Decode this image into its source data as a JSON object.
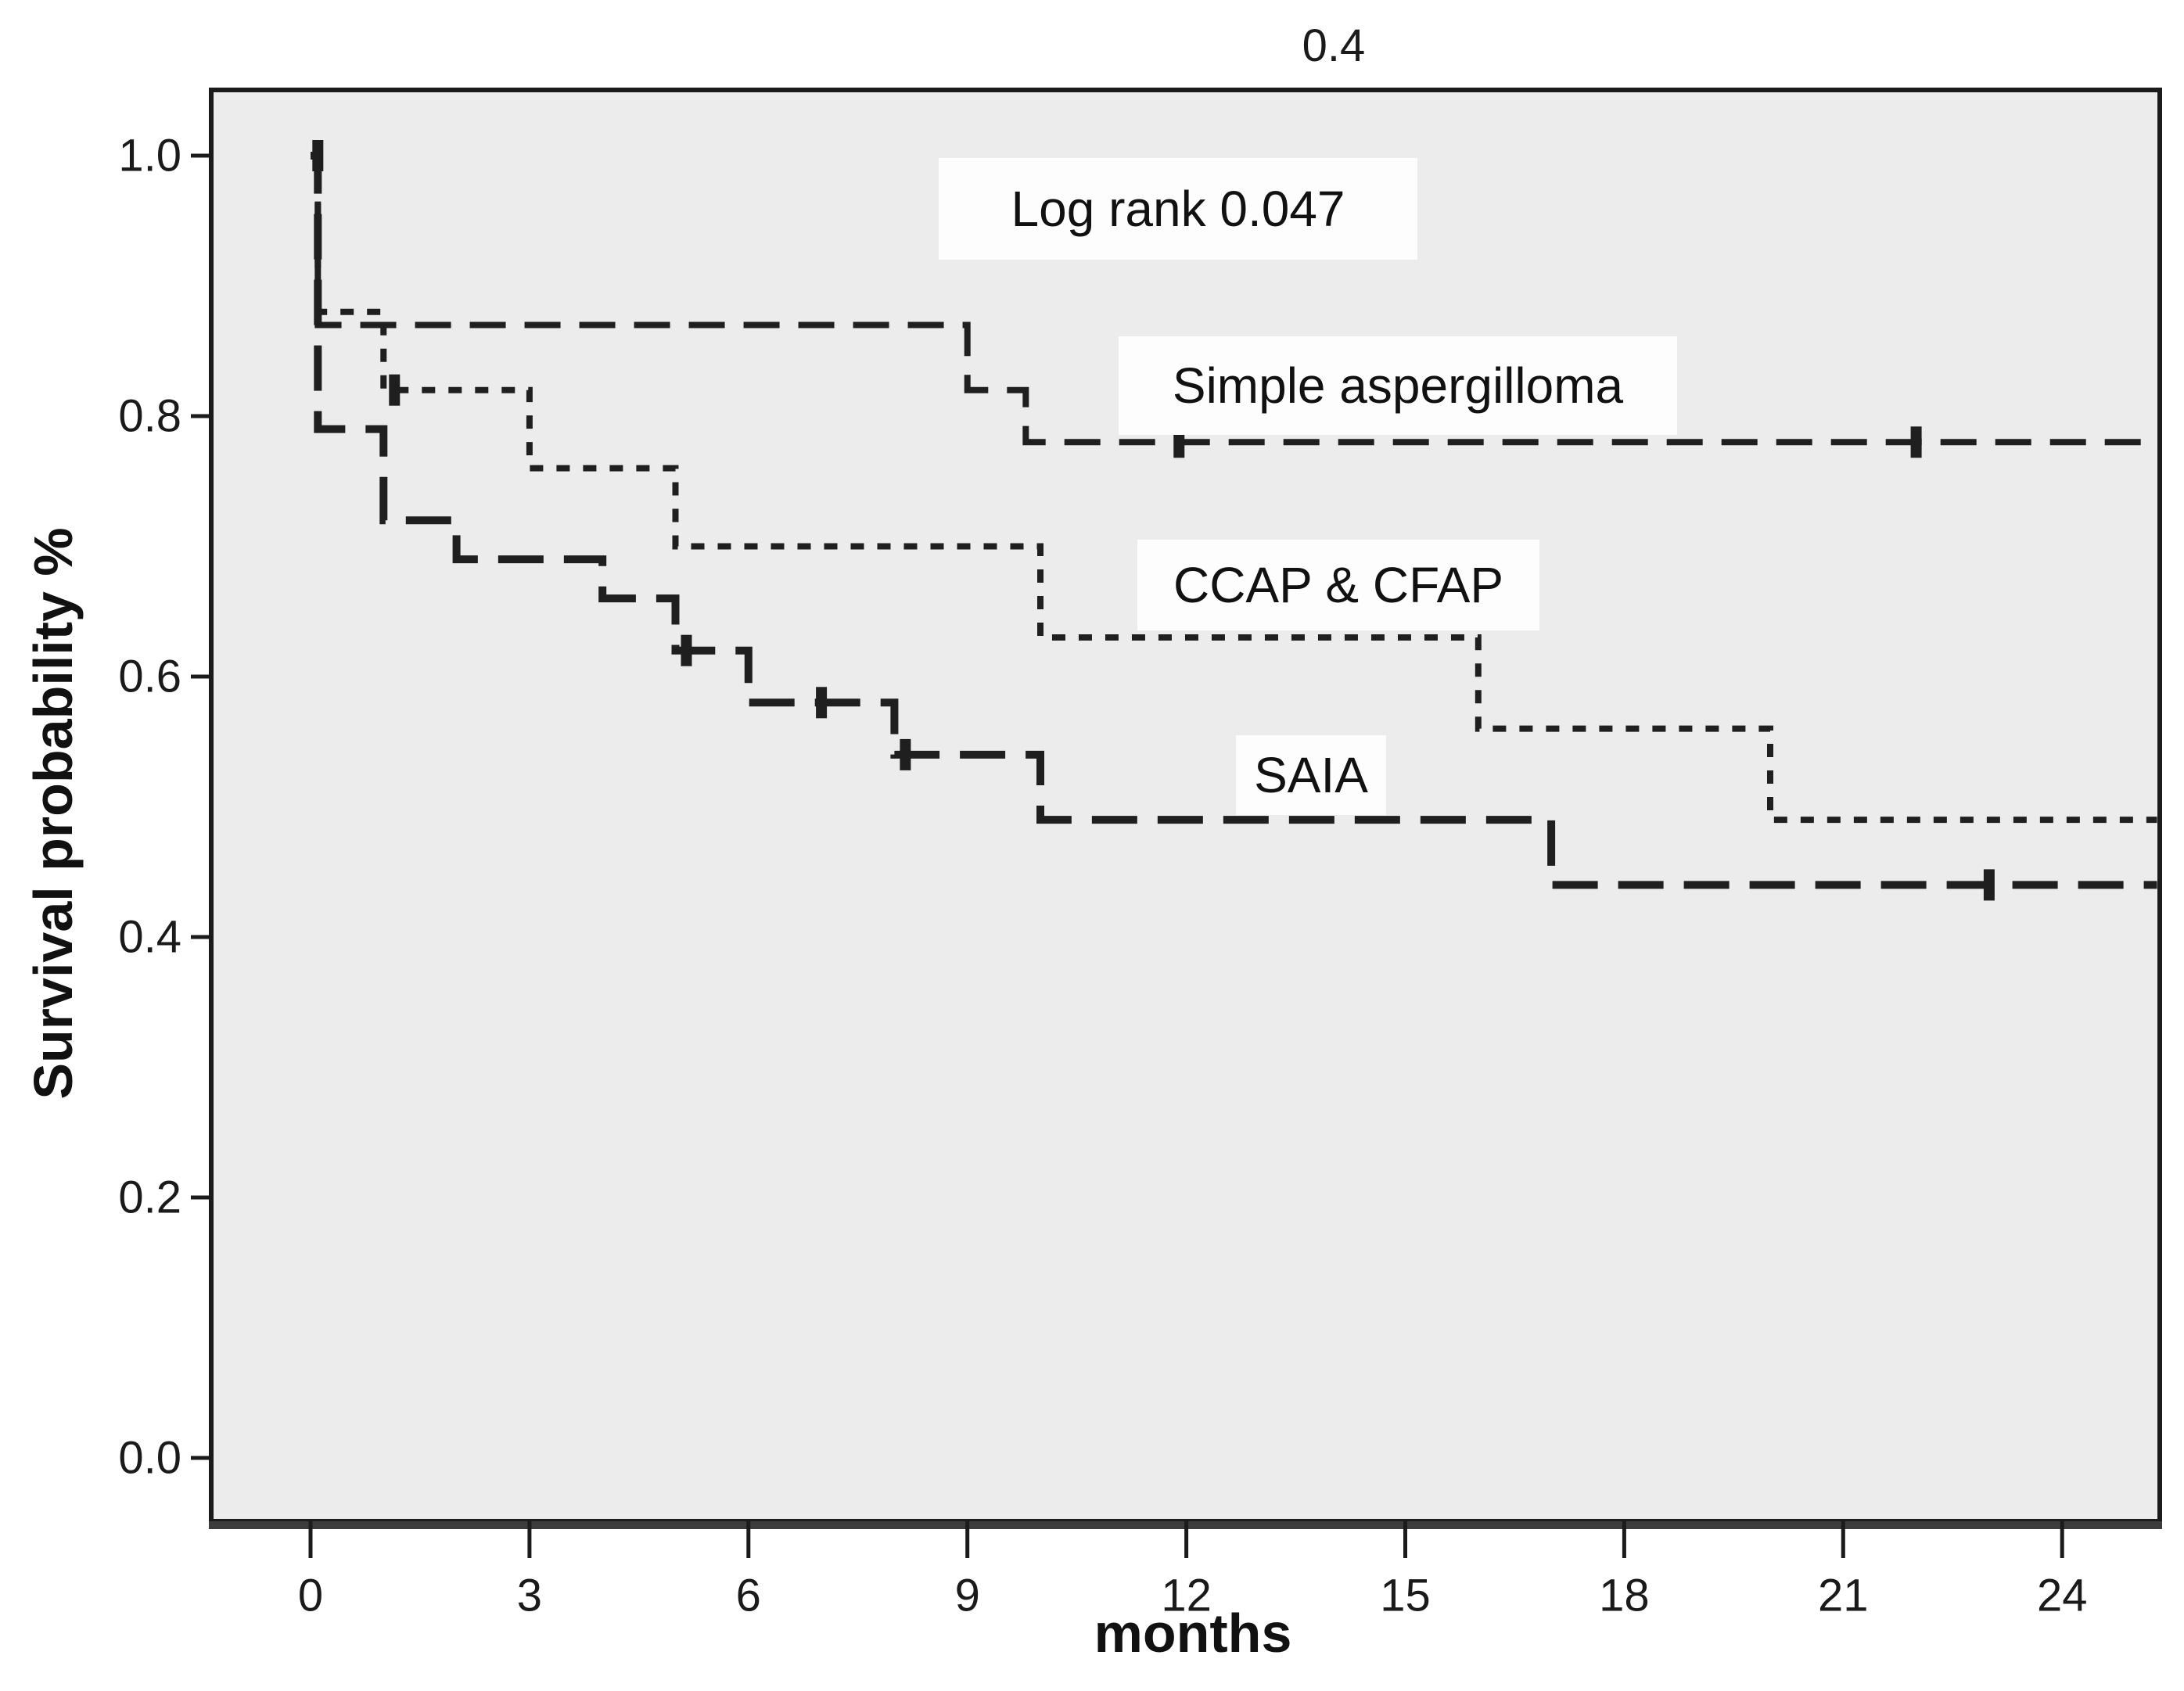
{
  "chart_data": {
    "type": "line",
    "subtype": "kaplan-meier-step",
    "title": "0.4",
    "annotation": "Log rank 0.047",
    "xlabel": "months",
    "ylabel": "Survival probability %",
    "grid": false,
    "legend_position": "inline-labels",
    "x_ticks": [
      {
        "label": "0",
        "value": 0
      },
      {
        "label": "3",
        "value": 3
      },
      {
        "label": "6",
        "value": 6
      },
      {
        "label": "9",
        "value": 9
      },
      {
        "label": "12",
        "value": 12
      },
      {
        "label": "15",
        "value": 15
      },
      {
        "label": "18",
        "value": 18
      },
      {
        "label": "21",
        "value": 21
      },
      {
        "label": "24",
        "value": 24
      }
    ],
    "y_ticks": [
      {
        "label": "1.0",
        "value": 1.0
      },
      {
        "label": "0.8",
        "value": 0.8
      },
      {
        "label": "0.6",
        "value": 0.6
      },
      {
        "label": "0.4",
        "value": 0.4
      },
      {
        "label": "0.2",
        "value": 0.2
      },
      {
        "label": "0.0",
        "value": 0.0
      }
    ],
    "xlim": [
      0,
      25.3
    ],
    "ylim": [
      0.0,
      1.0
    ],
    "series": [
      {
        "name": "Simple aspergilloma",
        "dash": "long",
        "steps": [
          [
            0,
            1.0
          ],
          [
            0.1,
            0.87
          ],
          [
            9,
            0.82
          ],
          [
            9.8,
            0.78
          ]
        ],
        "end_x": 25.3,
        "censors": [
          [
            0.1,
            1.0
          ],
          [
            11.9,
            0.78
          ],
          [
            22,
            0.78
          ]
        ]
      },
      {
        "name": "CCAP & CFAP",
        "dash": "dotted",
        "steps": [
          [
            0,
            1.0
          ],
          [
            0.1,
            0.88
          ],
          [
            1,
            0.82
          ],
          [
            3,
            0.76
          ],
          [
            5,
            0.7
          ],
          [
            10,
            0.63
          ],
          [
            16,
            0.56
          ],
          [
            20,
            0.49
          ]
        ],
        "end_x": 25.3,
        "censors": [
          [
            1.15,
            0.82
          ]
        ]
      },
      {
        "name": "SAIA",
        "dash": "long-thick",
        "steps": [
          [
            0,
            1.0
          ],
          [
            0.1,
            0.79
          ],
          [
            1,
            0.72
          ],
          [
            2,
            0.69
          ],
          [
            4,
            0.66
          ],
          [
            5,
            0.62
          ],
          [
            6,
            0.58
          ],
          [
            8,
            0.54
          ],
          [
            10,
            0.49
          ],
          [
            17,
            0.44
          ]
        ],
        "end_x": 25.3,
        "censors": [
          [
            5.15,
            0.62
          ],
          [
            7,
            0.58
          ],
          [
            8.15,
            0.54
          ],
          [
            23,
            0.44
          ]
        ]
      }
    ],
    "annotation_anchor": {
      "x": 11.9,
      "y": 0.957
    },
    "series_label_anchors": [
      {
        "series": "Simple aspergilloma",
        "x": 14.9,
        "y": 0.822
      },
      {
        "series": "CCAP & CFAP",
        "x": 14.1,
        "y": 0.668
      },
      {
        "series": "SAIA",
        "x": 13.7,
        "y": 0.521
      }
    ]
  }
}
